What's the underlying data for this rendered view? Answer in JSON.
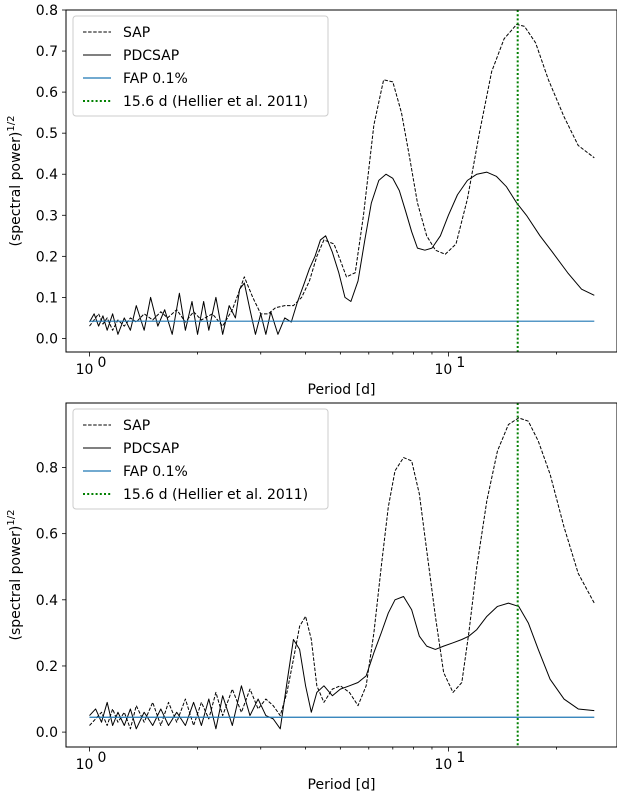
{
  "chart_data": [
    {
      "type": "line",
      "xlabel": "Period [d]",
      "ylabel": "(spectral power)",
      "ylabel_superscript": "1/2",
      "xscale": "log",
      "xlim": [
        0.86,
        29.5
      ],
      "ylim": [
        -0.033,
        0.8
      ],
      "yticks": [
        0.0,
        0.1,
        0.2,
        0.3,
        0.4,
        0.5,
        0.6,
        0.7,
        0.8
      ],
      "ytick_labels": [
        "0.0",
        "0.1",
        "0.2",
        "0.3",
        "0.4",
        "0.5",
        "0.6",
        "0.7",
        "0.8"
      ],
      "xticks_major": [
        1,
        10
      ],
      "xtick_labels": [
        {
          "base": "10",
          "exp": "0"
        },
        {
          "base": "10",
          "exp": "1"
        }
      ],
      "legend_position": "top-left",
      "legend": [
        {
          "label": "SAP",
          "style": "dashed",
          "color": "#000000"
        },
        {
          "label": "PDCSAP",
          "style": "solid",
          "color": "#000000"
        },
        {
          "label": "FAP 0.1%",
          "style": "solid",
          "color": "#1f77b4"
        },
        {
          "label": "15.6 d (Hellier et al. 2011)",
          "style": "dotted",
          "color": "#008000"
        }
      ],
      "series": [
        {
          "name": "SAP",
          "style": "dashed",
          "color": "#000000",
          "x": [
            1.0,
            1.03,
            1.06,
            1.09,
            1.12,
            1.16,
            1.2,
            1.25,
            1.3,
            1.35,
            1.42,
            1.5,
            1.58,
            1.65,
            1.75,
            1.85,
            1.95,
            2.05,
            2.2,
            2.35,
            2.5,
            2.6,
            2.7,
            2.85,
            3.0,
            3.15,
            3.3,
            3.5,
            3.7,
            3.9,
            4.1,
            4.3,
            4.5,
            4.8,
            5.0,
            5.2,
            5.5,
            5.8,
            6.2,
            6.6,
            7.0,
            7.4,
            7.8,
            8.2,
            8.7,
            9.2,
            9.8,
            10.5,
            11.3,
            12.2,
            13.2,
            14.3,
            15.5,
            16.3,
            17.5,
            19.0,
            21.0,
            23.0,
            25.5
          ],
          "y": [
            0.03,
            0.045,
            0.06,
            0.035,
            0.05,
            0.02,
            0.045,
            0.03,
            0.05,
            0.04,
            0.06,
            0.045,
            0.065,
            0.05,
            0.07,
            0.04,
            0.065,
            0.045,
            0.06,
            0.03,
            0.07,
            0.11,
            0.15,
            0.1,
            0.06,
            0.06,
            0.075,
            0.08,
            0.08,
            0.1,
            0.14,
            0.2,
            0.24,
            0.23,
            0.19,
            0.15,
            0.16,
            0.3,
            0.52,
            0.63,
            0.625,
            0.55,
            0.44,
            0.33,
            0.25,
            0.215,
            0.205,
            0.23,
            0.34,
            0.5,
            0.65,
            0.73,
            0.765,
            0.76,
            0.72,
            0.63,
            0.54,
            0.47,
            0.44
          ]
        },
        {
          "name": "PDCSAP",
          "style": "solid",
          "color": "#000000",
          "x": [
            1.0,
            1.03,
            1.06,
            1.09,
            1.12,
            1.16,
            1.2,
            1.25,
            1.3,
            1.35,
            1.42,
            1.48,
            1.55,
            1.62,
            1.7,
            1.78,
            1.85,
            1.93,
            2.0,
            2.08,
            2.15,
            2.25,
            2.35,
            2.45,
            2.55,
            2.62,
            2.7,
            2.8,
            2.9,
            3.0,
            3.1,
            3.2,
            3.35,
            3.5,
            3.65,
            3.8,
            3.95,
            4.1,
            4.25,
            4.4,
            4.55,
            4.75,
            4.95,
            5.15,
            5.35,
            5.6,
            5.85,
            6.1,
            6.4,
            6.7,
            7.0,
            7.3,
            7.6,
            7.9,
            8.2,
            8.6,
            9.0,
            9.5,
            10.0,
            10.6,
            11.3,
            12.0,
            12.8,
            13.6,
            14.5,
            15.5,
            16.5,
            18.0,
            19.5,
            21.5,
            23.5,
            25.5
          ],
          "y": [
            0.04,
            0.06,
            0.03,
            0.055,
            0.02,
            0.06,
            0.01,
            0.05,
            0.02,
            0.08,
            0.02,
            0.1,
            0.03,
            0.07,
            0.01,
            0.11,
            0.02,
            0.09,
            0.01,
            0.09,
            0.02,
            0.1,
            0.01,
            0.08,
            0.05,
            0.12,
            0.135,
            0.07,
            0.01,
            0.06,
            0.01,
            0.065,
            0.01,
            0.05,
            0.04,
            0.09,
            0.13,
            0.17,
            0.2,
            0.24,
            0.25,
            0.21,
            0.16,
            0.1,
            0.09,
            0.14,
            0.24,
            0.33,
            0.385,
            0.4,
            0.39,
            0.36,
            0.31,
            0.26,
            0.22,
            0.215,
            0.22,
            0.25,
            0.3,
            0.35,
            0.385,
            0.4,
            0.405,
            0.395,
            0.37,
            0.33,
            0.3,
            0.25,
            0.21,
            0.16,
            0.12,
            0.105
          ]
        },
        {
          "name": "FAP 0.1%",
          "style": "solid",
          "color": "#1f77b4",
          "x": [
            1.0,
            25.5
          ],
          "y": [
            0.042,
            0.042
          ]
        },
        {
          "name": "15.6 d (Hellier et al. 2011)",
          "style": "dotted",
          "color": "#008000",
          "vline_x": 15.6
        }
      ]
    },
    {
      "type": "line",
      "xlabel": "Period [d]",
      "ylabel": "(spectral power)",
      "ylabel_superscript": "1/2",
      "xscale": "log",
      "xlim": [
        0.86,
        29.5
      ],
      "ylim": [
        -0.045,
        0.995
      ],
      "yticks": [
        0.0,
        0.2,
        0.4,
        0.6,
        0.8
      ],
      "ytick_labels": [
        "0.0",
        "0.2",
        "0.4",
        "0.6",
        "0.8"
      ],
      "xticks_major": [
        1,
        10
      ],
      "xtick_labels": [
        {
          "base": "10",
          "exp": "0"
        },
        {
          "base": "10",
          "exp": "1"
        }
      ],
      "legend_position": "top-left",
      "legend": [
        {
          "label": "SAP",
          "style": "dashed",
          "color": "#000000"
        },
        {
          "label": "PDCSAP",
          "style": "solid",
          "color": "#000000"
        },
        {
          "label": "FAP 0.1%",
          "style": "solid",
          "color": "#1f77b4"
        },
        {
          "label": "15.6 d (Hellier et al. 2011)",
          "style": "dotted",
          "color": "#008000"
        }
      ],
      "series": [
        {
          "name": "SAP",
          "style": "dashed",
          "color": "#000000",
          "x": [
            1.0,
            1.04,
            1.08,
            1.12,
            1.16,
            1.2,
            1.25,
            1.3,
            1.35,
            1.42,
            1.5,
            1.58,
            1.66,
            1.75,
            1.85,
            1.95,
            2.05,
            2.15,
            2.25,
            2.35,
            2.5,
            2.65,
            2.8,
            2.95,
            3.1,
            3.25,
            3.4,
            3.55,
            3.7,
            3.85,
            4.0,
            4.15,
            4.3,
            4.5,
            4.75,
            5.0,
            5.3,
            5.6,
            5.9,
            6.2,
            6.5,
            6.8,
            7.1,
            7.5,
            7.9,
            8.3,
            8.7,
            9.2,
            9.7,
            10.3,
            10.9,
            11.4,
            12.0,
            12.8,
            13.7,
            14.7,
            15.7,
            16.7,
            17.8,
            19.2,
            21.0,
            23.0,
            25.5
          ],
          "y": [
            0.02,
            0.04,
            0.06,
            0.02,
            0.07,
            0.03,
            0.06,
            0.01,
            0.08,
            0.03,
            0.09,
            0.02,
            0.09,
            0.03,
            0.1,
            0.02,
            0.09,
            0.04,
            0.12,
            0.05,
            0.13,
            0.06,
            0.13,
            0.07,
            0.1,
            0.08,
            0.05,
            0.12,
            0.22,
            0.32,
            0.35,
            0.28,
            0.14,
            0.09,
            0.13,
            0.14,
            0.12,
            0.08,
            0.14,
            0.3,
            0.5,
            0.68,
            0.79,
            0.83,
            0.82,
            0.72,
            0.55,
            0.35,
            0.18,
            0.12,
            0.15,
            0.3,
            0.5,
            0.7,
            0.85,
            0.93,
            0.95,
            0.94,
            0.88,
            0.78,
            0.62,
            0.48,
            0.39
          ]
        },
        {
          "name": "PDCSAP",
          "style": "solid",
          "color": "#000000",
          "x": [
            1.0,
            1.04,
            1.08,
            1.12,
            1.16,
            1.2,
            1.25,
            1.3,
            1.35,
            1.42,
            1.5,
            1.58,
            1.66,
            1.75,
            1.85,
            1.95,
            2.05,
            2.15,
            2.25,
            2.35,
            2.5,
            2.65,
            2.8,
            2.95,
            3.1,
            3.25,
            3.4,
            3.55,
            3.7,
            3.85,
            4.0,
            4.15,
            4.3,
            4.5,
            4.75,
            5.0,
            5.3,
            5.6,
            5.9,
            6.2,
            6.5,
            6.8,
            7.1,
            7.5,
            7.9,
            8.3,
            8.7,
            9.2,
            9.7,
            10.3,
            10.9,
            11.4,
            12.0,
            12.8,
            13.7,
            14.7,
            15.7,
            16.7,
            17.8,
            19.2,
            21.0,
            23.0,
            25.5
          ],
          "y": [
            0.05,
            0.07,
            0.03,
            0.09,
            0.02,
            0.06,
            0.02,
            0.07,
            0.01,
            0.06,
            0.02,
            0.07,
            0.02,
            0.06,
            0.02,
            0.09,
            0.02,
            0.1,
            0.01,
            0.11,
            0.02,
            0.14,
            0.05,
            0.1,
            0.05,
            0.04,
            0.01,
            0.15,
            0.28,
            0.25,
            0.14,
            0.06,
            0.12,
            0.14,
            0.11,
            0.13,
            0.14,
            0.15,
            0.17,
            0.24,
            0.3,
            0.36,
            0.4,
            0.41,
            0.37,
            0.29,
            0.26,
            0.25,
            0.26,
            0.27,
            0.28,
            0.29,
            0.31,
            0.35,
            0.38,
            0.39,
            0.38,
            0.33,
            0.25,
            0.16,
            0.1,
            0.07,
            0.065
          ]
        },
        {
          "name": "FAP 0.1%",
          "style": "solid",
          "color": "#1f77b4",
          "x": [
            1.0,
            25.5
          ],
          "y": [
            0.045,
            0.045
          ]
        },
        {
          "name": "15.6 d (Hellier et al. 2011)",
          "style": "dotted",
          "color": "#008000",
          "vline_x": 15.6
        }
      ]
    }
  ]
}
